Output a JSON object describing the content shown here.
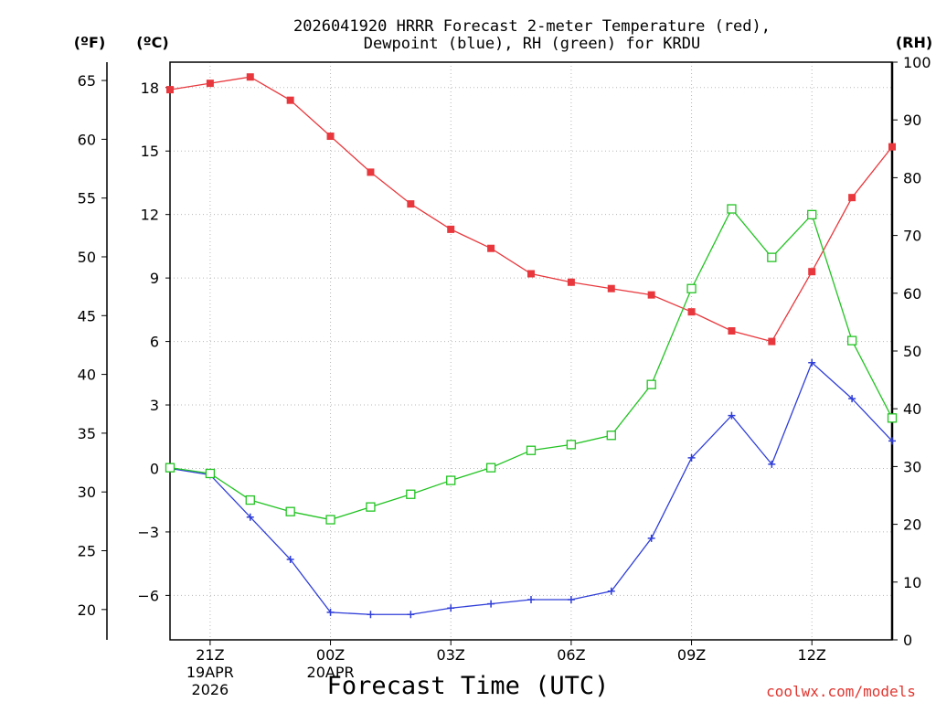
{
  "chart_data": {
    "type": "line",
    "title_line1": "2026041920 HRRR Forecast 2-meter Temperature (red),",
    "title_line2": "Dewpoint (blue), RH (green) for KRDU",
    "xlabel": "Forecast Time (UTC)",
    "credit": "coolwx.com/models",
    "units": {
      "fahrenheit": "(ºF)",
      "celsius": "(ºC)",
      "rh": "(RH)"
    },
    "x": [
      20,
      21,
      22,
      23,
      24,
      25,
      26,
      27,
      28,
      29,
      30,
      31,
      32,
      33,
      34,
      35,
      36,
      37,
      38
    ],
    "xlim": [
      20,
      38
    ],
    "x_ticks": [
      {
        "hour": 21,
        "label": "21Z",
        "sub1": "19APR",
        "sub2": "2026"
      },
      {
        "hour": 24,
        "label": "00Z",
        "sub1": "20APR",
        "sub2": ""
      },
      {
        "hour": 27,
        "label": "03Z",
        "sub1": "",
        "sub2": ""
      },
      {
        "hour": 30,
        "label": "06Z",
        "sub1": "",
        "sub2": ""
      },
      {
        "hour": 33,
        "label": "09Z",
        "sub1": "",
        "sub2": ""
      },
      {
        "hour": 36,
        "label": "12Z",
        "sub1": "",
        "sub2": ""
      }
    ],
    "celsius_axis": {
      "ylim": [
        -8.1,
        19.2
      ],
      "ticks": [
        "18",
        "15",
        "12",
        "9",
        "6",
        "3",
        "0",
        "−3",
        "−6"
      ],
      "tick_values": [
        18,
        15,
        12,
        9,
        6,
        3,
        0,
        -3,
        -6
      ]
    },
    "fahrenheit_axis": {
      "ticks": [
        "65",
        "60",
        "55",
        "50",
        "45",
        "40",
        "35",
        "30",
        "25",
        "20"
      ],
      "tick_values": [
        65,
        60,
        55,
        50,
        45,
        40,
        35,
        30,
        25,
        20
      ]
    },
    "rh_axis": {
      "ylim": [
        0,
        100
      ],
      "ticks": [
        "100",
        "90",
        "80",
        "70",
        "60",
        "50",
        "40",
        "30",
        "20",
        "10",
        "0"
      ],
      "tick_values": [
        100,
        90,
        80,
        70,
        60,
        50,
        40,
        30,
        20,
        10,
        0
      ]
    },
    "series": [
      {
        "name": "2-meter Temperature",
        "units": "C",
        "color": "#e8383d",
        "marker": "filled-square",
        "values": [
          17.9,
          18.2,
          18.5,
          17.4,
          15.7,
          14.0,
          12.5,
          11.3,
          10.4,
          9.2,
          8.8,
          8.5,
          8.2,
          7.4,
          6.5,
          6.0,
          9.3,
          12.8,
          15.2
        ]
      },
      {
        "name": "Dewpoint",
        "units": "C",
        "color": "#2f3ed8",
        "marker": "plus",
        "values": [
          0.0,
          -0.3,
          -2.3,
          -4.3,
          -6.8,
          -6.9,
          -6.9,
          -6.6,
          -6.4,
          -6.2,
          -6.2,
          -5.8,
          -3.3,
          0.5,
          2.5,
          0.2,
          5.0,
          3.3,
          1.3
        ]
      },
      {
        "name": "RH",
        "units": "%",
        "color": "#22c322",
        "marker": "open-square",
        "values": [
          29.8,
          28.8,
          24.2,
          22.2,
          20.8,
          23.0,
          25.2,
          27.6,
          29.8,
          32.8,
          33.8,
          35.4,
          44.2,
          60.8,
          74.6,
          66.2,
          73.6,
          51.8,
          38.4
        ]
      }
    ]
  }
}
